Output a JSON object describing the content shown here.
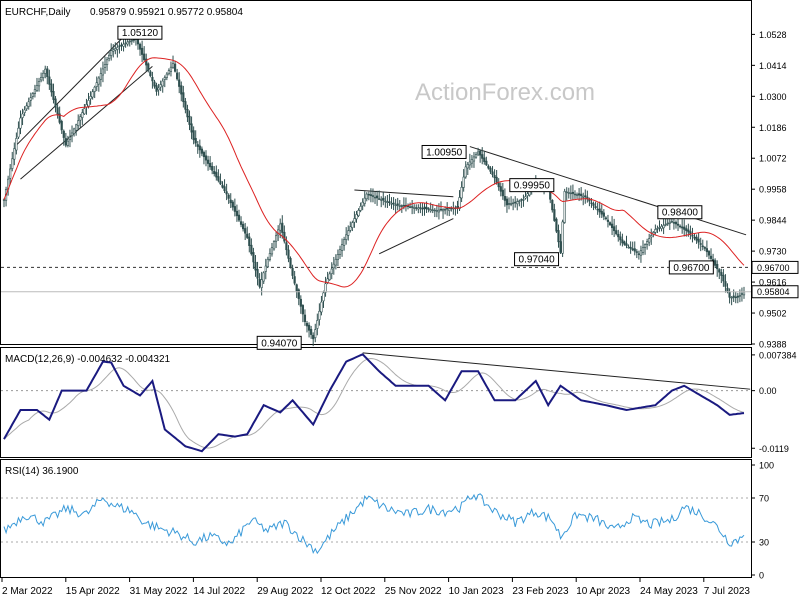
{
  "header": {
    "symbol_label": "EURCHF,Daily",
    "ohlc": "0.95879 0.95921 0.95772 0.95804"
  },
  "watermark": "ActionForex.com",
  "colors": {
    "candle": "#2f4f4f",
    "sma": "#dd2222",
    "trend": "#222222",
    "macd": "#1a1a80",
    "signal": "#aaaaaa",
    "rsi": "#3a9ad9",
    "watermark": "#c8c8c8"
  },
  "chart_data": [
    {
      "type": "candlestick",
      "name": "EURCHF,Daily",
      "ylim": [
        0.9388,
        1.0592
      ],
      "y_ticks": [
        1.0528,
        1.0414,
        1.03,
        1.0186,
        1.0072,
        0.9958,
        0.9844,
        0.973,
        0.9616,
        0.9502,
        0.9388
      ],
      "x_ticks": [
        "2 Mar 2022",
        "15 Apr 2022",
        "31 May 2022",
        "14 Jul 2022",
        "29 Aug 2022",
        "12 Oct 2022",
        "25 Nov 2022",
        "10 Jan 2023",
        "23 Feb 2023",
        "10 Apr 2023",
        "24 May 2023",
        "7 Jul 2023"
      ],
      "bar_count": 360,
      "anchors": [
        [
          0,
          0.992
        ],
        [
          8,
          1.022
        ],
        [
          20,
          1.04
        ],
        [
          30,
          1.012
        ],
        [
          42,
          1.03
        ],
        [
          52,
          1.0468
        ],
        [
          60,
          1.05
        ],
        [
          64,
          1.0512
        ],
        [
          74,
          1.0318
        ],
        [
          82,
          1.042
        ],
        [
          92,
          1.014
        ],
        [
          108,
          0.994
        ],
        [
          118,
          0.978
        ],
        [
          124,
          0.96
        ],
        [
          128,
          0.97
        ],
        [
          134,
          0.983
        ],
        [
          140,
          0.964
        ],
        [
          146,
          0.947
        ],
        [
          150,
          0.9407
        ],
        [
          156,
          0.961
        ],
        [
          166,
          0.979
        ],
        [
          176,
          0.994
        ],
        [
          190,
          0.99
        ],
        [
          210,
          0.988
        ],
        [
          220,
          0.989
        ],
        [
          224,
          1.004
        ],
        [
          230,
          1.0095
        ],
        [
          238,
          1.0
        ],
        [
          244,
          0.99
        ],
        [
          252,
          0.992
        ],
        [
          258,
          0.9985
        ],
        [
          264,
          0.996
        ],
        [
          270,
          0.9725
        ],
        [
          272,
          0.995
        ],
        [
          282,
          0.993
        ],
        [
          292,
          0.985
        ],
        [
          300,
          0.976
        ],
        [
          308,
          0.972
        ],
        [
          316,
          0.981
        ],
        [
          324,
          0.984
        ],
        [
          332,
          0.98
        ],
        [
          340,
          0.974
        ],
        [
          348,
          0.964
        ],
        [
          352,
          0.956
        ],
        [
          356,
          0.956
        ],
        [
          359,
          0.95804
        ]
      ],
      "levels": [
        {
          "label": "1.05120",
          "value": 1.0512,
          "bar": 64
        },
        {
          "label": "1.00950",
          "value": 1.0095,
          "bar": 230
        },
        {
          "label": "0.99950",
          "value": 0.9995,
          "bar": 258
        },
        {
          "label": "0.98400",
          "value": 0.984,
          "bar": 324
        },
        {
          "label": "0.97040",
          "value": 0.9704,
          "bar": 270
        },
        {
          "label": "0.96700",
          "value": 0.967,
          "bar": 348
        },
        {
          "label": "0.94070",
          "value": 0.9407,
          "bar": 150
        }
      ],
      "horizontal_line": {
        "label": "0.96700",
        "value": 0.967
      },
      "price_line": {
        "label": "0.95804",
        "value": 0.95804
      },
      "trendlines": [
        [
          [
            6,
            1.012
          ],
          [
            62,
            1.055
          ]
        ],
        [
          [
            8,
            0.9995
          ],
          [
            72,
            1.041
          ]
        ],
        [
          [
            170,
            0.9955
          ],
          [
            218,
            0.993
          ]
        ],
        [
          [
            182,
            0.972
          ],
          [
            218,
            0.985
          ]
        ],
        [
          [
            226,
            1.0115
          ],
          [
            360,
            0.979
          ]
        ]
      ],
      "sma_period": 30
    },
    {
      "type": "line",
      "title": "MACD(12,26,9) -0.004632 -0.004321",
      "ylim": [
        -0.0135,
        0.0086
      ],
      "y_ticks": [
        {
          "label": "0.007384",
          "value": 0.007384
        },
        {
          "label": "0.00",
          "value": 0.0
        },
        {
          "label": "-0.0119",
          "value": -0.0119
        }
      ],
      "zero_line": 0.0,
      "macd_anchors": [
        [
          0,
          -0.01
        ],
        [
          8,
          -0.004
        ],
        [
          16,
          -0.004
        ],
        [
          22,
          -0.006
        ],
        [
          28,
          0.0
        ],
        [
          40,
          0.0
        ],
        [
          48,
          0.006
        ],
        [
          52,
          0.0058
        ],
        [
          58,
          0.001
        ],
        [
          66,
          -0.001
        ],
        [
          72,
          0.002
        ],
        [
          78,
          -0.008
        ],
        [
          88,
          -0.0115
        ],
        [
          96,
          -0.0125
        ],
        [
          104,
          -0.009
        ],
        [
          112,
          -0.0095
        ],
        [
          118,
          -0.009
        ],
        [
          126,
          -0.003
        ],
        [
          134,
          -0.0045
        ],
        [
          140,
          -0.002
        ],
        [
          150,
          -0.007
        ],
        [
          158,
          0.0
        ],
        [
          166,
          0.006
        ],
        [
          174,
          0.0075
        ],
        [
          182,
          0.004
        ],
        [
          190,
          0.001
        ],
        [
          198,
          0.001
        ],
        [
          206,
          0.001
        ],
        [
          214,
          -0.002
        ],
        [
          222,
          0.004
        ],
        [
          230,
          0.004
        ],
        [
          238,
          -0.002
        ],
        [
          248,
          -0.002
        ],
        [
          258,
          0.002
        ],
        [
          264,
          -0.003
        ],
        [
          270,
          0.001
        ],
        [
          280,
          -0.002
        ],
        [
          292,
          -0.003
        ],
        [
          302,
          -0.004
        ],
        [
          316,
          -0.003
        ],
        [
          324,
          0.0
        ],
        [
          330,
          0.001
        ],
        [
          338,
          -0.001
        ],
        [
          346,
          -0.003
        ],
        [
          352,
          -0.005
        ],
        [
          359,
          -0.004632
        ]
      ],
      "signal_lag": 6,
      "trendline": [
        [
          174,
          0.0078
        ],
        [
          362,
          0.0003
        ]
      ]
    },
    {
      "type": "line",
      "title": "RSI(14) 36.1900",
      "ylim": [
        0,
        100
      ],
      "y_ticks": [
        {
          "label": "100",
          "value": 100
        },
        {
          "label": "70",
          "value": 70
        },
        {
          "label": "30",
          "value": 30
        },
        {
          "label": "0",
          "value": 0
        }
      ],
      "dotted_levels": [
        70,
        30
      ],
      "rsi_anchors": [
        [
          0,
          40
        ],
        [
          10,
          55
        ],
        [
          20,
          48
        ],
        [
          30,
          60
        ],
        [
          40,
          55
        ],
        [
          48,
          70
        ],
        [
          54,
          63
        ],
        [
          62,
          58
        ],
        [
          68,
          48
        ],
        [
          76,
          42
        ],
        [
          84,
          38
        ],
        [
          92,
          30
        ],
        [
          100,
          35
        ],
        [
          110,
          28
        ],
        [
          120,
          50
        ],
        [
          128,
          40
        ],
        [
          136,
          48
        ],
        [
          146,
          30
        ],
        [
          152,
          22
        ],
        [
          160,
          40
        ],
        [
          168,
          55
        ],
        [
          176,
          70
        ],
        [
          186,
          60
        ],
        [
          196,
          55
        ],
        [
          206,
          60
        ],
        [
          214,
          58
        ],
        [
          222,
          62
        ],
        [
          228,
          74
        ],
        [
          238,
          58
        ],
        [
          248,
          48
        ],
        [
          258,
          58
        ],
        [
          266,
          50
        ],
        [
          270,
          35
        ],
        [
          278,
          55
        ],
        [
          288,
          50
        ],
        [
          296,
          40
        ],
        [
          304,
          52
        ],
        [
          314,
          46
        ],
        [
          324,
          50
        ],
        [
          330,
          62
        ],
        [
          338,
          56
        ],
        [
          346,
          44
        ],
        [
          352,
          30
        ],
        [
          356,
          32
        ],
        [
          359,
          36.19
        ]
      ]
    }
  ]
}
